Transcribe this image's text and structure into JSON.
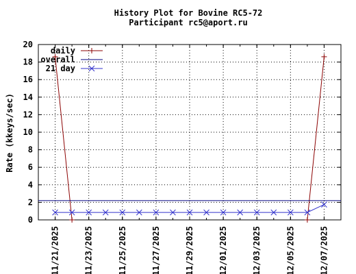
{
  "chart_data": {
    "type": "line",
    "title": "History Plot for Bovine RC5-72",
    "subtitle": "Participant rc5@aport.ru",
    "xlabel": "",
    "ylabel": "Rate (kkeys/sec)",
    "ylim": [
      0,
      20
    ],
    "yticks": [
      "0",
      "2",
      "4",
      "6",
      "8",
      "10",
      "12",
      "14",
      "16",
      "18",
      "20"
    ],
    "xlim": [
      "2025-11-20",
      "2025-12-08"
    ],
    "xticks": [
      "11/21/2025",
      "11/23/2025",
      "11/25/2025",
      "11/27/2025",
      "11/29/2025",
      "12/01/2025",
      "12/03/2025",
      "12/05/2025",
      "12/07/2025"
    ],
    "grid": true,
    "legend_position": "top-left",
    "x": [
      "2025-11-21",
      "2025-11-22",
      "2025-11-23",
      "2025-11-24",
      "2025-11-25",
      "2025-11-26",
      "2025-11-27",
      "2025-11-28",
      "2025-11-29",
      "2025-11-30",
      "2025-12-01",
      "2025-12-02",
      "2025-12-03",
      "2025-12-04",
      "2025-12-05",
      "2025-12-06",
      "2025-12-07"
    ],
    "series": [
      {
        "name": "daily",
        "color": "#8b0000",
        "marker": "plus",
        "values": [
          18.6,
          0,
          null,
          null,
          null,
          null,
          null,
          null,
          null,
          null,
          null,
          null,
          null,
          null,
          null,
          0,
          18.6
        ]
      },
      {
        "name": "overall",
        "color": "#000080",
        "marker": "none",
        "constant": 2.2
      },
      {
        "name": "21 day",
        "color": "#3333cc",
        "marker": "x",
        "values": [
          0.85,
          0.85,
          0.85,
          0.85,
          0.85,
          0.85,
          0.85,
          0.85,
          0.85,
          0.85,
          0.85,
          0.85,
          0.85,
          0.85,
          0.85,
          0.85,
          1.75
        ]
      }
    ]
  }
}
